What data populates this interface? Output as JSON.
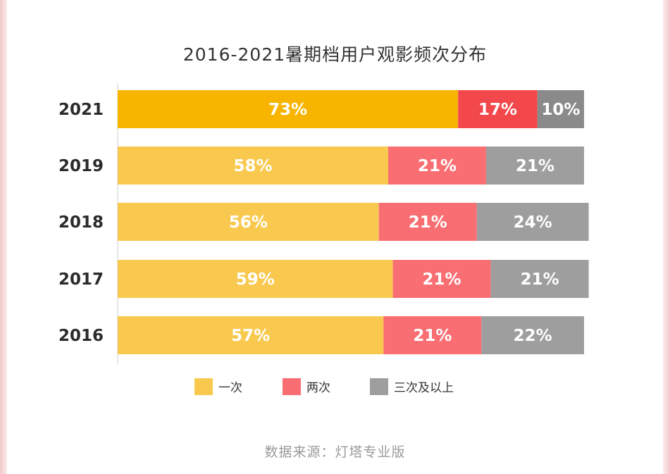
{
  "chart_data": {
    "type": "bar",
    "orientation": "horizontal",
    "stacked": true,
    "title": "2016-2021暑期档用户观影频次分布",
    "categories": [
      "2021",
      "2019",
      "2018",
      "2017",
      "2016"
    ],
    "series": [
      {
        "name": "一次",
        "values": [
          73,
          58,
          56,
          59,
          57
        ],
        "labels": [
          "73%",
          "58%",
          "56%",
          "59%",
          "57%"
        ],
        "color": "#F9C94F",
        "highlight_color": "#F7B500"
      },
      {
        "name": "两次",
        "values": [
          17,
          21,
          21,
          21,
          21
        ],
        "labels": [
          "17%",
          "21%",
          "21%",
          "21%",
          "21%"
        ],
        "color": "#F96E72",
        "highlight_color": "#F2474B"
      },
      {
        "name": "三次及以上",
        "values": [
          10,
          21,
          24,
          21,
          22
        ],
        "labels": [
          "10%",
          "21%",
          "24%",
          "21%",
          "22%"
        ],
        "color": "#9E9E9E",
        "highlight_color": "#8A8A8A"
      }
    ],
    "highlighted_category": "2021",
    "xlim": [
      0,
      100
    ],
    "legend_position": "bottom",
    "source": "数据来源：灯塔专业版"
  }
}
